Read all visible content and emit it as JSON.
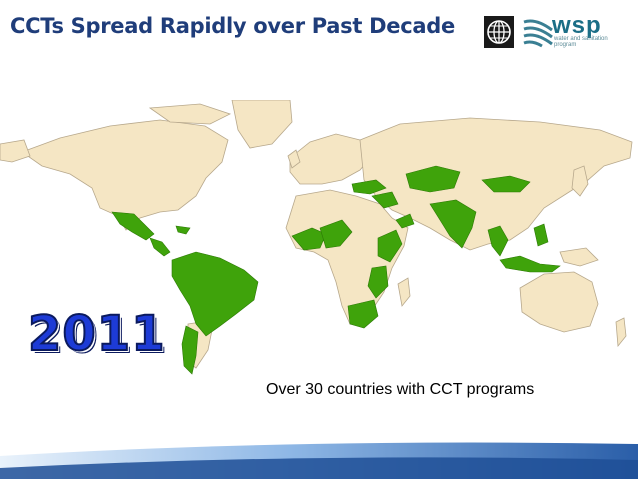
{
  "slide": {
    "title": "CCTs Spread Rapidly over Past Decade",
    "year": "2011",
    "caption": "Over 30 countries with CCT programs"
  },
  "logos": {
    "world_bank": "globe-icon",
    "wsp_name": "wsp",
    "wsp_tagline": "water and sanitation program"
  },
  "map": {
    "land_color": "#f5e6c4",
    "border_color": "#b7a88c",
    "highlight_color": "#3fa30b",
    "ocean_color": "#ffffff",
    "highlighted_regions": [
      "mexico",
      "central-america",
      "caribbean",
      "south-america",
      "andes-chile",
      "west-africa",
      "nigeria",
      "ethiopia-kenya",
      "tanzania-malawi",
      "south-africa",
      "turkey",
      "middle-east",
      "yemen",
      "pakistan-india",
      "kazakhstan",
      "mongolia",
      "southeast-asia",
      "indonesia",
      "philippines"
    ]
  },
  "footer": {
    "primary_color": "#2a5ea8",
    "secondary_color": "#8fb8e6"
  }
}
